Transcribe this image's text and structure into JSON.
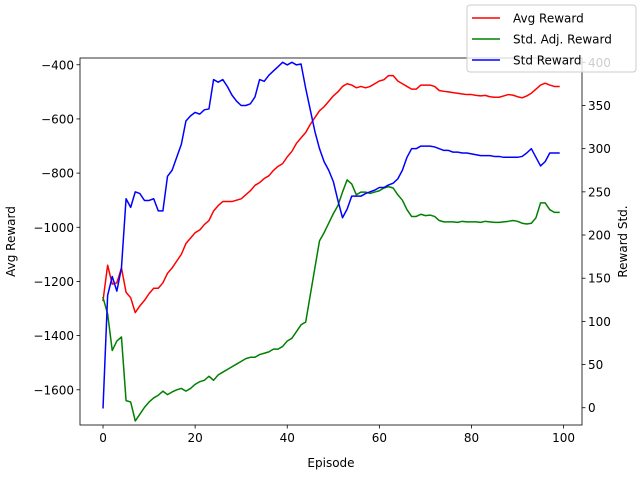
{
  "chart_data": {
    "type": "line",
    "xlabel": "Episode",
    "ylabel_left": "Avg Reward",
    "ylabel_right": "Reward Std.",
    "xlim": [
      -5,
      104
    ],
    "ylim_left": [
      -1730,
      -375
    ],
    "ylim_right": [
      -20,
      405
    ],
    "x_ticks": [
      0,
      20,
      40,
      60,
      80,
      100
    ],
    "y_left_ticks": [
      -1600,
      -1400,
      -1200,
      -1000,
      -800,
      -600,
      -400
    ],
    "y_right_ticks": [
      0,
      50,
      100,
      150,
      200,
      250,
      300,
      350,
      400
    ],
    "legend_position": "upper right (outside axes)",
    "grid": false,
    "x": [
      0,
      1,
      2,
      3,
      4,
      5,
      6,
      7,
      8,
      9,
      10,
      11,
      12,
      13,
      14,
      15,
      16,
      17,
      18,
      19,
      20,
      21,
      22,
      23,
      24,
      25,
      26,
      27,
      28,
      29,
      30,
      31,
      32,
      33,
      34,
      35,
      36,
      37,
      38,
      39,
      40,
      41,
      42,
      43,
      44,
      45,
      46,
      47,
      48,
      49,
      50,
      51,
      52,
      53,
      54,
      55,
      56,
      57,
      58,
      59,
      60,
      61,
      62,
      63,
      64,
      65,
      66,
      67,
      68,
      69,
      70,
      71,
      72,
      73,
      74,
      75,
      76,
      77,
      78,
      79,
      80,
      81,
      82,
      83,
      84,
      85,
      86,
      87,
      88,
      89,
      90,
      91,
      92,
      93,
      94,
      95,
      96,
      97,
      98,
      99
    ],
    "series": [
      {
        "name": "Avg Reward",
        "axis": "left",
        "color": "#ff0000",
        "values": [
          -1270,
          -1140,
          -1210,
          -1205,
          -1150,
          -1240,
          -1260,
          -1315,
          -1290,
          -1270,
          -1245,
          -1225,
          -1225,
          -1205,
          -1170,
          -1150,
          -1125,
          -1100,
          -1060,
          -1040,
          -1020,
          -1010,
          -990,
          -975,
          -940,
          -920,
          -905,
          -905,
          -905,
          -900,
          -895,
          -880,
          -865,
          -845,
          -835,
          -820,
          -810,
          -790,
          -775,
          -765,
          -740,
          -720,
          -690,
          -670,
          -650,
          -620,
          -595,
          -570,
          -555,
          -535,
          -515,
          -500,
          -480,
          -470,
          -475,
          -485,
          -480,
          -485,
          -480,
          -470,
          -460,
          -455,
          -440,
          -440,
          -460,
          -470,
          -480,
          -490,
          -490,
          -475,
          -475,
          -475,
          -480,
          -495,
          -498,
          -500,
          -503,
          -505,
          -508,
          -510,
          -510,
          -513,
          -515,
          -513,
          -518,
          -520,
          -520,
          -515,
          -510,
          -512,
          -518,
          -522,
          -515,
          -505,
          -490,
          -475,
          -468,
          -475,
          -480,
          -480
        ]
      },
      {
        "name": "Std. Adj. Reward",
        "axis": "left",
        "color": "#008000",
        "values": [
          -1260,
          -1320,
          -1455,
          -1420,
          -1405,
          -1640,
          -1645,
          -1715,
          -1690,
          -1665,
          -1645,
          -1630,
          -1620,
          -1605,
          -1618,
          -1608,
          -1600,
          -1595,
          -1605,
          -1595,
          -1580,
          -1570,
          -1565,
          -1550,
          -1565,
          -1545,
          -1535,
          -1525,
          -1515,
          -1505,
          -1495,
          -1485,
          -1480,
          -1480,
          -1470,
          -1465,
          -1460,
          -1450,
          -1450,
          -1440,
          -1420,
          -1410,
          -1385,
          -1360,
          -1350,
          -1250,
          -1150,
          -1050,
          -1020,
          -985,
          -950,
          -920,
          -870,
          -825,
          -840,
          -880,
          -870,
          -870,
          -875,
          -870,
          -865,
          -855,
          -850,
          -855,
          -880,
          -900,
          -935,
          -960,
          -960,
          -952,
          -957,
          -955,
          -960,
          -975,
          -980,
          -980,
          -980,
          -982,
          -978,
          -980,
          -980,
          -980,
          -982,
          -978,
          -980,
          -982,
          -982,
          -980,
          -978,
          -975,
          -978,
          -985,
          -988,
          -985,
          -965,
          -910,
          -910,
          -935,
          -945,
          -945
        ]
      },
      {
        "name": "Std Reward",
        "axis": "right",
        "color": "#0000ff",
        "values": [
          0,
          130,
          152,
          135,
          162,
          242,
          232,
          250,
          248,
          240,
          240,
          242,
          228,
          228,
          268,
          275,
          290,
          305,
          332,
          338,
          342,
          340,
          345,
          346,
          380,
          377,
          380,
          372,
          362,
          355,
          350,
          350,
          352,
          360,
          380,
          378,
          385,
          390,
          395,
          400,
          397,
          400,
          397,
          398,
          370,
          345,
          320,
          300,
          285,
          275,
          262,
          240,
          220,
          230,
          245,
          245,
          245,
          248,
          250,
          252,
          255,
          255,
          258,
          260,
          265,
          275,
          290,
          300,
          300,
          303,
          303,
          303,
          302,
          300,
          298,
          298,
          296,
          296,
          295,
          295,
          294,
          293,
          292,
          292,
          292,
          291,
          291,
          290,
          290,
          290,
          290,
          291,
          295,
          300,
          290,
          280,
          285,
          295,
          295,
          295
        ]
      }
    ]
  }
}
